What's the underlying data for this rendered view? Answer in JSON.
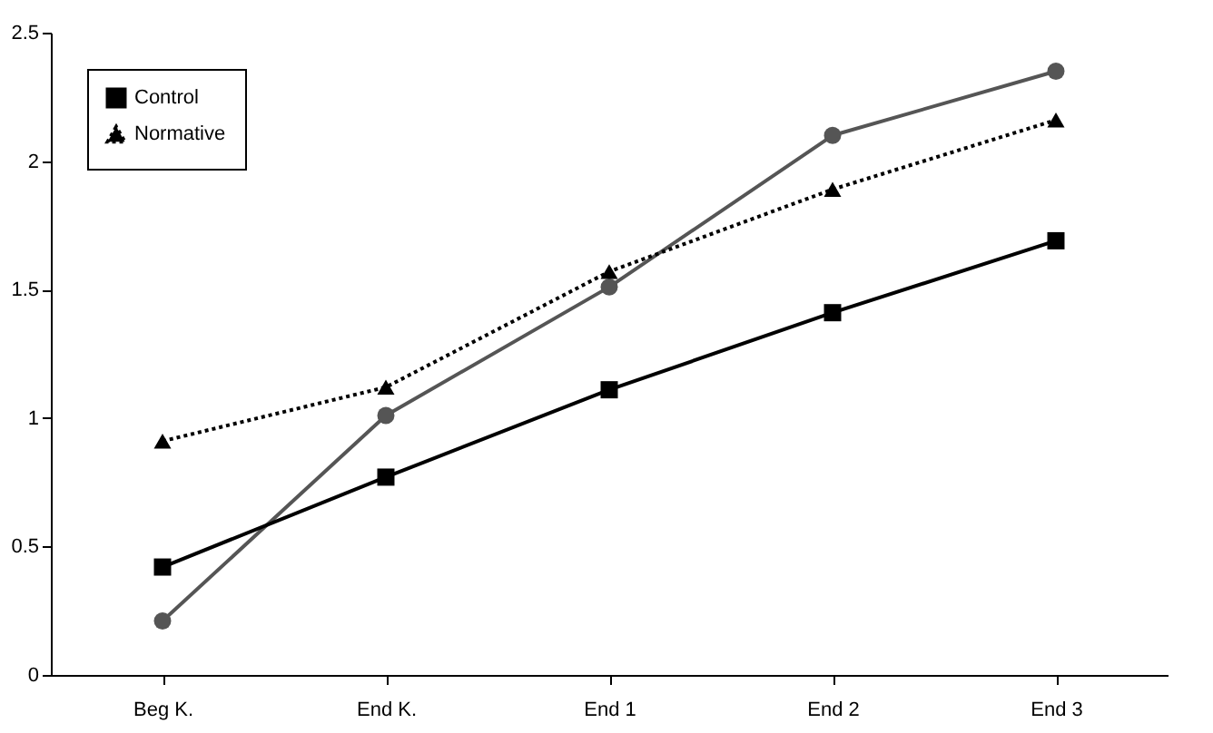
{
  "chart_data": {
    "type": "line",
    "categories": [
      "Beg K.",
      "End K.",
      "End 1",
      "End 2",
      "End 3"
    ],
    "series": [
      {
        "color": "#555555",
        "marker": "circle",
        "line_style": "solid",
        "values": [
          0.21,
          1.01,
          1.51,
          2.1,
          2.35
        ]
      },
      {
        "name": "Control",
        "color": "#000000",
        "marker": "square",
        "line_style": "solid",
        "values": [
          0.42,
          0.77,
          1.11,
          1.41,
          1.69
        ]
      },
      {
        "name": "Normative",
        "color": "#000000",
        "marker": "triangle",
        "line_style": "dotted",
        "values": [
          0.91,
          1.12,
          1.57,
          1.89,
          2.16
        ]
      }
    ],
    "ylim": [
      0,
      2.5
    ],
    "yticks": [
      0,
      0.5,
      1,
      1.5,
      2,
      2.5
    ],
    "grid": false,
    "legend": "top left"
  }
}
